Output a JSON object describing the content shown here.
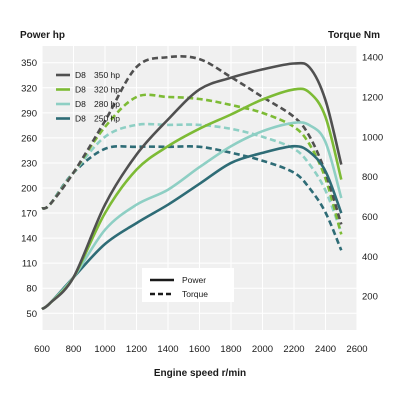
{
  "chart_data": {
    "type": "line",
    "title_left": "Power hp",
    "title_right": "Torque Nm",
    "xlabel": "Engine speed r/min",
    "x_ticks": [
      600,
      800,
      1000,
      1200,
      1400,
      1600,
      1800,
      2000,
      2200,
      2400,
      2600
    ],
    "y_left_ticks": [
      50,
      80,
      110,
      140,
      170,
      200,
      230,
      260,
      290,
      320,
      350
    ],
    "y_right_ticks": [
      200,
      400,
      600,
      800,
      1000,
      1200,
      1400
    ],
    "xlim": [
      600,
      2600
    ],
    "ylim_left": [
      30,
      370
    ],
    "ylim_right": [
      30,
      1456
    ],
    "legend_items": [
      {
        "model": "D8",
        "rating": "350 hp",
        "color": "#505050"
      },
      {
        "model": "D8",
        "rating": "320 hp",
        "color": "#7dbb35"
      },
      {
        "model": "D8",
        "rating": "280 hp",
        "color": "#8ecfc4"
      },
      {
        "model": "D8",
        "rating": "250 hp",
        "color": "#2e6c76"
      }
    ],
    "style_legend": [
      {
        "label": "Power",
        "style": "solid"
      },
      {
        "label": "Torque",
        "style": "dashed"
      }
    ],
    "power_series": [
      {
        "name": "D8 350 hp",
        "color": "#505050",
        "x": [
          600,
          650,
          800,
          1000,
          1200,
          1400,
          1600,
          1800,
          2000,
          2200,
          2300,
          2400,
          2500
        ],
        "y": [
          55,
          62,
          93,
          180,
          240,
          282,
          318,
          332,
          342,
          349,
          344,
          305,
          228
        ]
      },
      {
        "name": "D8 320 hp",
        "color": "#7dbb35",
        "x": [
          600,
          650,
          800,
          1000,
          1200,
          1400,
          1600,
          1800,
          2000,
          2200,
          2300,
          2400,
          2500
        ],
        "y": [
          55,
          62,
          93,
          170,
          222,
          250,
          271,
          288,
          306,
          318,
          314,
          285,
          210
        ]
      },
      {
        "name": "D8 280 hp",
        "color": "#8ecfc4",
        "x": [
          600,
          650,
          800,
          1000,
          1200,
          1400,
          1600,
          1800,
          2000,
          2200,
          2300,
          2400,
          2500
        ],
        "y": [
          55,
          62,
          93,
          150,
          180,
          198,
          225,
          250,
          268,
          278,
          275,
          255,
          188
        ]
      },
      {
        "name": "D8 250 hp",
        "color": "#2e6c76",
        "x": [
          600,
          650,
          800,
          1000,
          1200,
          1400,
          1600,
          1800,
          2000,
          2200,
          2300,
          2400,
          2500
        ],
        "y": [
          55,
          62,
          93,
          133,
          158,
          180,
          205,
          230,
          242,
          250,
          243,
          220,
          170
        ]
      }
    ],
    "torque_series": [
      {
        "name": "D8 350 hp",
        "color": "#505050",
        "x": [
          600,
          650,
          800,
          1000,
          1200,
          1400,
          1600,
          1800,
          2000,
          2200,
          2300,
          2400,
          2500
        ],
        "y": [
          640,
          660,
          820,
          1080,
          1350,
          1400,
          1390,
          1300,
          1200,
          1100,
          1000,
          820,
          560
        ]
      },
      {
        "name": "D8 320 hp",
        "color": "#7dbb35",
        "x": [
          600,
          650,
          800,
          1000,
          1200,
          1400,
          1600,
          1800,
          2000,
          2200,
          2300,
          2400,
          2500
        ],
        "y": [
          640,
          660,
          820,
          1050,
          1200,
          1200,
          1190,
          1160,
          1120,
          1050,
          960,
          790,
          510
        ]
      },
      {
        "name": "D8 280 hp",
        "color": "#8ecfc4",
        "x": [
          600,
          650,
          800,
          1000,
          1200,
          1400,
          1600,
          1800,
          2000,
          2200,
          2300,
          2400,
          2500
        ],
        "y": [
          640,
          660,
          820,
          1000,
          1060,
          1060,
          1060,
          1040,
          1000,
          940,
          860,
          730,
          520
        ]
      },
      {
        "name": "D8 250 hp",
        "color": "#2e6c76",
        "x": [
          600,
          650,
          800,
          1000,
          1200,
          1400,
          1600,
          1800,
          2000,
          2200,
          2300,
          2400,
          2500
        ],
        "y": [
          640,
          660,
          820,
          940,
          950,
          950,
          950,
          920,
          880,
          820,
          740,
          620,
          430
        ]
      }
    ],
    "grid": true,
    "legend_position": "top-left inside plot",
    "style_legend_position": "bottom-center inside plot"
  }
}
